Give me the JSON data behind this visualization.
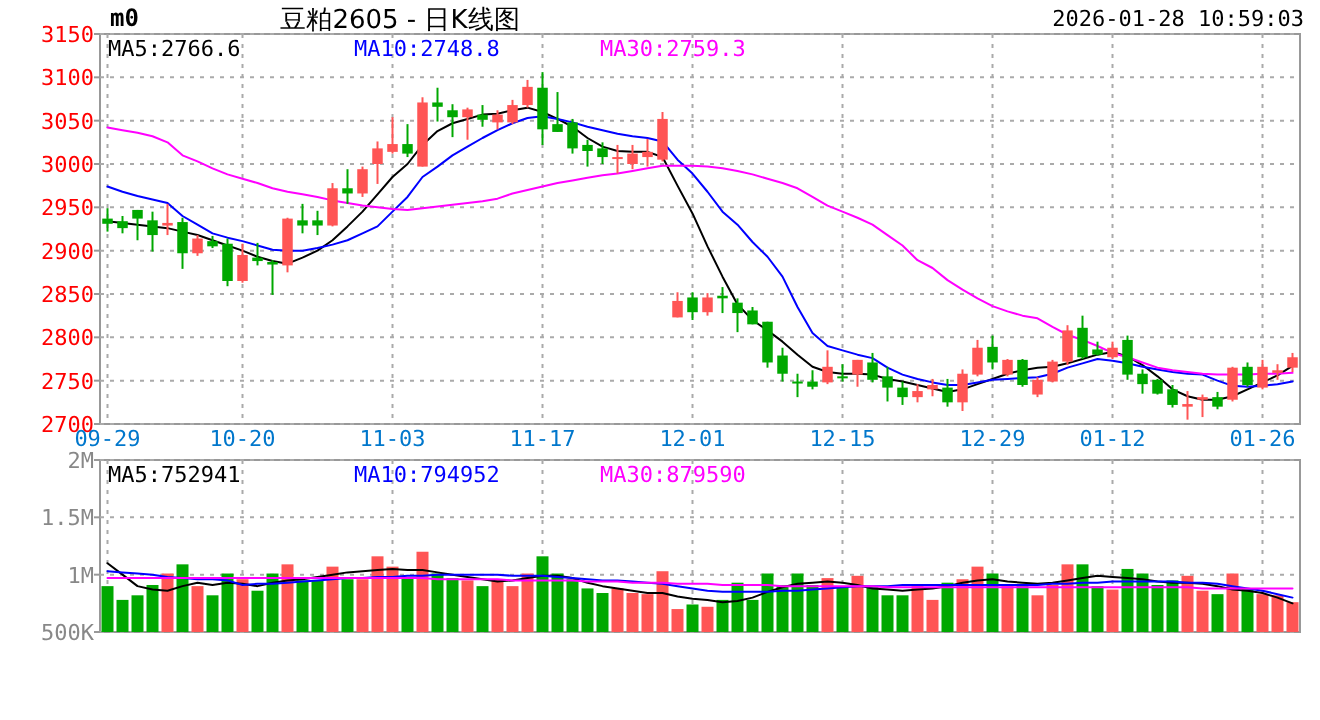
{
  "chart_data": [
    {
      "type": "candlestick",
      "title": "豆粕2605 - 日K线图",
      "annotations": [
        "m0",
        "2026-01-28 10:59:03"
      ],
      "categories": [
        "09-29",
        null,
        null,
        null,
        null,
        null,
        null,
        null,
        null,
        "10-20",
        null,
        null,
        null,
        null,
        null,
        null,
        null,
        null,
        null,
        "11-03",
        null,
        null,
        null,
        null,
        null,
        null,
        null,
        null,
        null,
        "11-17",
        null,
        null,
        null,
        null,
        null,
        null,
        null,
        null,
        null,
        "12-01",
        null,
        null,
        null,
        null,
        null,
        null,
        null,
        null,
        null,
        "12-15",
        null,
        null,
        null,
        null,
        null,
        null,
        null,
        null,
        null,
        "12-29",
        null,
        null,
        null,
        null,
        null,
        null,
        null,
        "01-12",
        null,
        null,
        null,
        null,
        null,
        null,
        null,
        null,
        null,
        "01-26",
        null,
        null
      ],
      "ohlc": [
        [
          2937,
          2949,
          2922,
          2931
        ],
        [
          2934,
          2940,
          2920,
          2926
        ],
        [
          2947,
          2947,
          2912,
          2937
        ],
        [
          2935,
          2945,
          2899,
          2918
        ],
        [
          2929,
          2954,
          2918,
          2932
        ],
        [
          2933,
          2938,
          2879,
          2897
        ],
        [
          2897,
          2918,
          2894,
          2914
        ],
        [
          2911,
          2917,
          2903,
          2905
        ],
        [
          2908,
          2914,
          2859,
          2865
        ],
        [
          2865,
          2908,
          2863,
          2895
        ],
        [
          2892,
          2909,
          2883,
          2888
        ],
        [
          2887,
          2889,
          2849,
          2884
        ],
        [
          2883,
          2938,
          2875,
          2937
        ],
        [
          2935,
          2954,
          2920,
          2929
        ],
        [
          2935,
          2946,
          2918,
          2929
        ],
        [
          2929,
          2978,
          2928,
          2972
        ],
        [
          2972,
          2994,
          2954,
          2966
        ],
        [
          2966,
          2997,
          2962,
          2994
        ],
        [
          3000,
          3026,
          2977,
          3018
        ],
        [
          3014,
          3054,
          3012,
          3023
        ],
        [
          3023,
          3046,
          3008,
          3012
        ],
        [
          2997,
          3077,
          2997,
          3071
        ],
        [
          3071,
          3088,
          3049,
          3066
        ],
        [
          3062,
          3069,
          3031,
          3054
        ],
        [
          3054,
          3065,
          3028,
          3063
        ],
        [
          3057,
          3068,
          3043,
          3051
        ],
        [
          3048,
          3062,
          3040,
          3057
        ],
        [
          3048,
          3074,
          3046,
          3068
        ],
        [
          3068,
          3097,
          3065,
          3089
        ],
        [
          3088,
          3106,
          3022,
          3040
        ],
        [
          3046,
          3083,
          3037,
          3037
        ],
        [
          3048,
          3052,
          3012,
          3018
        ],
        [
          3022,
          3028,
          2997,
          3015
        ],
        [
          3018,
          3025,
          3000,
          3008
        ],
        [
          3006,
          3022,
          2989,
          3008
        ],
        [
          3000,
          3022,
          2994,
          3012
        ],
        [
          3008,
          3029,
          2997,
          3014
        ],
        [
          3005,
          3060,
          3003,
          3052
        ],
        [
          2823,
          2852,
          2823,
          2842
        ],
        [
          2846,
          2852,
          2820,
          2829
        ],
        [
          2829,
          2851,
          2825,
          2846
        ],
        [
          2848,
          2858,
          2828,
          2845
        ],
        [
          2840,
          2845,
          2806,
          2828
        ],
        [
          2831,
          2835,
          2815,
          2815
        ],
        [
          2818,
          2818,
          2765,
          2771
        ],
        [
          2779,
          2788,
          2749,
          2758
        ],
        [
          2749,
          2758,
          2731,
          2748
        ],
        [
          2749,
          2762,
          2740,
          2743
        ],
        [
          2748,
          2785,
          2746,
          2766
        ],
        [
          2755,
          2769,
          2749,
          2754
        ],
        [
          2757,
          2774,
          2743,
          2774
        ],
        [
          2771,
          2782,
          2748,
          2751
        ],
        [
          2755,
          2766,
          2726,
          2742
        ],
        [
          2742,
          2749,
          2722,
          2731
        ],
        [
          2731,
          2746,
          2725,
          2738
        ],
        [
          2740,
          2752,
          2732,
          2745
        ],
        [
          2742,
          2752,
          2720,
          2725
        ],
        [
          2725,
          2763,
          2715,
          2758
        ],
        [
          2757,
          2797,
          2755,
          2788
        ],
        [
          2789,
          2802,
          2763,
          2771
        ],
        [
          2757,
          2775,
          2755,
          2774
        ],
        [
          2774,
          2775,
          2743,
          2745
        ],
        [
          2734,
          2754,
          2731,
          2751
        ],
        [
          2749,
          2774,
          2748,
          2772
        ],
        [
          2772,
          2814,
          2768,
          2808
        ],
        [
          2811,
          2825,
          2775,
          2777
        ],
        [
          2786,
          2795,
          2779,
          2780
        ],
        [
          2777,
          2795,
          2775,
          2788
        ],
        [
          2797,
          2802,
          2751,
          2757
        ],
        [
          2758,
          2763,
          2735,
          2746
        ],
        [
          2751,
          2752,
          2734,
          2735
        ],
        [
          2740,
          2745,
          2719,
          2722
        ],
        [
          2720,
          2738,
          2705,
          2723
        ],
        [
          2728,
          2734,
          2708,
          2731
        ],
        [
          2731,
          2737,
          2717,
          2720
        ],
        [
          2728,
          2766,
          2726,
          2765
        ],
        [
          2766,
          2771,
          2743,
          2745
        ],
        [
          2742,
          2774,
          2740,
          2766
        ],
        [
          2759,
          2769,
          2751,
          2762
        ],
        [
          2765,
          2782,
          2760,
          2777
        ]
      ],
      "colors": [
        "#00a800",
        "#00a800",
        "#00a800",
        "#00a800",
        "#ff5555",
        "#00a800",
        "#ff5555",
        "#00a800",
        "#00a800",
        "#ff5555",
        "#00a800",
        "#00a800",
        "#ff5555",
        "#00a800",
        "#00a800",
        "#ff5555",
        "#00a800",
        "#ff5555",
        "#ff5555",
        "#ff5555",
        "#00a800",
        "#ff5555",
        "#00a800",
        "#00a800",
        "#ff5555",
        "#00a800",
        "#ff5555",
        "#ff5555",
        "#ff5555",
        "#00a800",
        "#00a800",
        "#00a800",
        "#00a800",
        "#00a800",
        "#ff5555",
        "#ff5555",
        "#ff5555",
        "#ff5555",
        "#ff5555",
        "#00a800",
        "#ff5555",
        "#00a800",
        "#00a800",
        "#00a800",
        "#00a800",
        "#00a800",
        "#00a800",
        "#00a800",
        "#ff5555",
        "#00a800",
        "#ff5555",
        "#00a800",
        "#00a800",
        "#00a800",
        "#ff5555",
        "#ff5555",
        "#00a800",
        "#ff5555",
        "#ff5555",
        "#00a800",
        "#ff5555",
        "#00a800",
        "#ff5555",
        "#ff5555",
        "#ff5555",
        "#00a800",
        "#00a800",
        "#ff5555",
        "#00a800",
        "#00a800",
        "#00a800",
        "#00a800",
        "#ff5555",
        "#ff5555",
        "#00a800",
        "#ff5555",
        "#00a800",
        "#ff5555",
        "#ff5555",
        "#ff5555"
      ],
      "ylim": [
        2700,
        3150
      ],
      "yticks": [
        2700,
        2750,
        2800,
        2850,
        2900,
        2950,
        3000,
        3050,
        3100,
        3150
      ],
      "grid": true,
      "legend": "top left",
      "series": [
        {
          "name": "MA5:2766.6",
          "type": "line",
          "color": "#000000",
          "values": [
            2934,
            2932,
            2930,
            2928,
            2926,
            2922,
            2918,
            2912,
            2906,
            2900,
            2893,
            2888,
            2885,
            2892,
            2900,
            2912,
            2928,
            2945,
            2965,
            2985,
            3000,
            3022,
            3038,
            3047,
            3052,
            3057,
            3058,
            3062,
            3065,
            3060,
            3052,
            3043,
            3030,
            3020,
            3015,
            3014,
            3014,
            3008,
            2975,
            2943,
            2905,
            2870,
            2838,
            2820,
            2808,
            2795,
            2780,
            2766,
            2760,
            2758,
            2758,
            2757,
            2752,
            2749,
            2745,
            2741,
            2737,
            2740,
            2746,
            2752,
            2758,
            2762,
            2765,
            2766,
            2770,
            2775,
            2780,
            2783,
            2778,
            2768,
            2755,
            2740,
            2732,
            2728,
            2728,
            2732,
            2740,
            2748,
            2756,
            2767
          ]
        },
        {
          "name": "MA10:2748.8",
          "type": "line",
          "color": "#0000ff",
          "values": [
            2974,
            2968,
            2963,
            2959,
            2955,
            2940,
            2930,
            2920,
            2915,
            2911,
            2906,
            2901,
            2900,
            2900,
            2903,
            2907,
            2912,
            2920,
            2928,
            2945,
            2962,
            2985,
            2997,
            3010,
            3020,
            3030,
            3039,
            3047,
            3053,
            3055,
            3052,
            3048,
            3043,
            3039,
            3035,
            3032,
            3030,
            3026,
            3005,
            2989,
            2968,
            2945,
            2930,
            2910,
            2893,
            2870,
            2835,
            2805,
            2790,
            2785,
            2780,
            2776,
            2765,
            2757,
            2752,
            2748,
            2745,
            2745,
            2748,
            2751,
            2752,
            2753,
            2754,
            2758,
            2765,
            2770,
            2775,
            2773,
            2770,
            2766,
            2763,
            2760,
            2758,
            2757,
            2750,
            2744,
            2743,
            2744,
            2746,
            2749
          ]
        },
        {
          "name": "MA30:2759.3",
          "type": "line",
          "color": "#ff00ff",
          "values": [
            3042,
            3039,
            3036,
            3032,
            3025,
            3010,
            3003,
            2995,
            2988,
            2983,
            2978,
            2972,
            2968,
            2965,
            2962,
            2958,
            2955,
            2952,
            2950,
            2948,
            2947,
            2949,
            2951,
            2953,
            2955,
            2957,
            2960,
            2966,
            2970,
            2974,
            2978,
            2981,
            2984,
            2987,
            2989,
            2992,
            2995,
            2998,
            2998,
            2998,
            2997,
            2995,
            2992,
            2988,
            2983,
            2978,
            2972,
            2962,
            2952,
            2945,
            2938,
            2930,
            2918,
            2906,
            2889,
            2880,
            2866,
            2855,
            2845,
            2836,
            2830,
            2825,
            2822,
            2812,
            2803,
            2797,
            2790,
            2782,
            2777,
            2771,
            2765,
            2762,
            2760,
            2758,
            2757,
            2757,
            2757,
            2758,
            2758,
            2759
          ]
        }
      ]
    },
    {
      "type": "bar",
      "tick_labels": "y",
      "values": [
        900000,
        780000,
        820000,
        910000,
        1010000,
        1090000,
        900000,
        820000,
        1010000,
        960000,
        860000,
        1010000,
        1090000,
        950000,
        950000,
        1070000,
        960000,
        960000,
        1160000,
        1070000,
        970000,
        1200000,
        1010000,
        970000,
        950000,
        900000,
        960000,
        900000,
        1010000,
        1160000,
        1010000,
        960000,
        880000,
        840000,
        880000,
        840000,
        830000,
        1030000,
        700000,
        740000,
        720000,
        780000,
        930000,
        780000,
        1010000,
        910000,
        1010000,
        910000,
        970000,
        900000,
        990000,
        900000,
        820000,
        820000,
        910000,
        780000,
        930000,
        960000,
        1070000,
        1010000,
        900000,
        900000,
        820000,
        910000,
        1090000,
        1090000,
        900000,
        870000,
        1050000,
        1010000,
        910000,
        950000,
        990000,
        860000,
        830000,
        1010000,
        880000,
        830000,
        820000,
        760000
      ],
      "colors": [
        "#00a800",
        "#00a800",
        "#00a800",
        "#00a800",
        "#ff5555",
        "#00a800",
        "#ff5555",
        "#00a800",
        "#00a800",
        "#ff5555",
        "#00a800",
        "#00a800",
        "#ff5555",
        "#00a800",
        "#00a800",
        "#ff5555",
        "#00a800",
        "#ff5555",
        "#ff5555",
        "#ff5555",
        "#00a800",
        "#ff5555",
        "#00a800",
        "#00a800",
        "#ff5555",
        "#00a800",
        "#ff5555",
        "#ff5555",
        "#ff5555",
        "#00a800",
        "#00a800",
        "#00a800",
        "#00a800",
        "#00a800",
        "#ff5555",
        "#ff5555",
        "#ff5555",
        "#ff5555",
        "#ff5555",
        "#00a800",
        "#ff5555",
        "#00a800",
        "#00a800",
        "#00a800",
        "#00a800",
        "#00a800",
        "#00a800",
        "#00a800",
        "#ff5555",
        "#00a800",
        "#ff5555",
        "#00a800",
        "#00a800",
        "#00a800",
        "#ff5555",
        "#ff5555",
        "#00a800",
        "#ff5555",
        "#ff5555",
        "#00a800",
        "#ff5555",
        "#00a800",
        "#ff5555",
        "#ff5555",
        "#ff5555",
        "#00a800",
        "#00a800",
        "#ff5555",
        "#00a800",
        "#00a800",
        "#00a800",
        "#00a800",
        "#ff5555",
        "#ff5555",
        "#00a800",
        "#ff5555",
        "#00a800",
        "#ff5555",
        "#ff5555",
        "#ff5555"
      ],
      "ylim": [
        500000,
        2000000
      ],
      "yticks": [
        {
          "value": 500000,
          "label": "500K"
        },
        {
          "value": 1000000,
          "label": "1M"
        },
        {
          "value": 1500000,
          "label": "1.5M"
        },
        {
          "value": 2000000,
          "label": "2M"
        }
      ],
      "grid": true,
      "legend": "top left",
      "series": [
        {
          "name": "MA5:752941",
          "type": "line",
          "color": "#000000",
          "values": [
            1100000,
            1000000,
            900000,
            870000,
            860000,
            900000,
            930000,
            910000,
            930000,
            920000,
            900000,
            930000,
            950000,
            960000,
            980000,
            1000000,
            1020000,
            1030000,
            1040000,
            1050000,
            1040000,
            1040000,
            1020000,
            1000000,
            980000,
            960000,
            940000,
            950000,
            970000,
            990000,
            990000,
            970000,
            930000,
            900000,
            880000,
            860000,
            840000,
            840000,
            810000,
            790000,
            780000,
            760000,
            770000,
            800000,
            850000,
            890000,
            920000,
            930000,
            940000,
            930000,
            910000,
            880000,
            870000,
            860000,
            870000,
            880000,
            900000,
            930000,
            950000,
            960000,
            940000,
            930000,
            920000,
            930000,
            950000,
            970000,
            990000,
            980000,
            970000,
            960000,
            940000,
            930000,
            930000,
            920000,
            900000,
            870000,
            860000,
            840000,
            800000,
            750000
          ]
        },
        {
          "name": "MA10:794952",
          "type": "line",
          "color": "#0000ff",
          "values": [
            1030000,
            1020000,
            1010000,
            1000000,
            980000,
            970000,
            960000,
            960000,
            950000,
            910000,
            920000,
            920000,
            930000,
            940000,
            950000,
            960000,
            970000,
            970000,
            980000,
            980000,
            990000,
            990000,
            1000000,
            1000000,
            1000000,
            1000000,
            1000000,
            990000,
            990000,
            990000,
            980000,
            970000,
            960000,
            950000,
            950000,
            940000,
            930000,
            920000,
            900000,
            880000,
            860000,
            850000,
            850000,
            850000,
            850000,
            860000,
            860000,
            870000,
            880000,
            890000,
            900000,
            900000,
            900000,
            910000,
            910000,
            910000,
            910000,
            910000,
            910000,
            910000,
            910000,
            910000,
            910000,
            920000,
            920000,
            930000,
            930000,
            940000,
            940000,
            940000,
            940000,
            940000,
            930000,
            930000,
            920000,
            900000,
            880000,
            860000,
            830000,
            800000
          ]
        },
        {
          "name": "MA30:879590",
          "type": "line",
          "color": "#ff00ff",
          "values": [
            970000,
            970000,
            970000,
            970000,
            970000,
            970000,
            970000,
            970000,
            970000,
            970000,
            970000,
            970000,
            970000,
            970000,
            970000,
            970000,
            970000,
            970000,
            970000,
            970000,
            970000,
            970000,
            960000,
            960000,
            960000,
            960000,
            960000,
            950000,
            950000,
            950000,
            950000,
            950000,
            940000,
            940000,
            940000,
            930000,
            930000,
            930000,
            920000,
            920000,
            920000,
            910000,
            910000,
            910000,
            910000,
            900000,
            900000,
            900000,
            900000,
            900000,
            900000,
            900000,
            890000,
            890000,
            890000,
            890000,
            890000,
            890000,
            890000,
            890000,
            890000,
            890000,
            890000,
            890000,
            890000,
            890000,
            890000,
            890000,
            890000,
            890000,
            890000,
            890000,
            890000,
            880000,
            880000,
            880000,
            880000,
            880000,
            880000,
            880000
          ]
        }
      ]
    }
  ]
}
